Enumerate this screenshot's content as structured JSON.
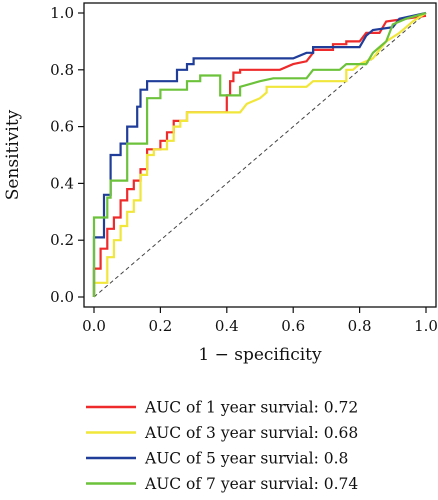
{
  "chart_data": {
    "type": "line",
    "title": "",
    "xlabel": "1 − specificity",
    "ylabel": "Sensitivity",
    "xlim": [
      0,
      1
    ],
    "ylim": [
      0,
      1
    ],
    "x_ticks": [
      "0.0",
      "0.2",
      "0.4",
      "0.6",
      "0.8",
      "1.0"
    ],
    "y_ticks": [
      "0.0",
      "0.2",
      "0.4",
      "0.6",
      "0.8",
      "1.0"
    ],
    "grid": false,
    "legend_position": "bottom",
    "reference_line": {
      "style": "dashed",
      "color": "#444444",
      "points": [
        [
          0,
          0
        ],
        [
          1,
          1
        ]
      ]
    },
    "series": [
      {
        "name": "AUC of 1 year survial: 0.72",
        "color": "#ee2a2a",
        "points": [
          [
            0,
            0
          ],
          [
            0,
            0.1
          ],
          [
            0.02,
            0.1
          ],
          [
            0.02,
            0.17
          ],
          [
            0.04,
            0.17
          ],
          [
            0.04,
            0.24
          ],
          [
            0.06,
            0.24
          ],
          [
            0.06,
            0.28
          ],
          [
            0.08,
            0.28
          ],
          [
            0.08,
            0.34
          ],
          [
            0.1,
            0.34
          ],
          [
            0.1,
            0.38
          ],
          [
            0.12,
            0.38
          ],
          [
            0.12,
            0.41
          ],
          [
            0.14,
            0.41
          ],
          [
            0.14,
            0.45
          ],
          [
            0.16,
            0.45
          ],
          [
            0.16,
            0.52
          ],
          [
            0.2,
            0.52
          ],
          [
            0.2,
            0.55
          ],
          [
            0.22,
            0.55
          ],
          [
            0.22,
            0.58
          ],
          [
            0.24,
            0.58
          ],
          [
            0.24,
            0.62
          ],
          [
            0.28,
            0.62
          ],
          [
            0.28,
            0.65
          ],
          [
            0.4,
            0.65
          ],
          [
            0.4,
            0.71
          ],
          [
            0.41,
            0.71
          ],
          [
            0.41,
            0.76
          ],
          [
            0.42,
            0.76
          ],
          [
            0.42,
            0.79
          ],
          [
            0.44,
            0.79
          ],
          [
            0.44,
            0.8
          ],
          [
            0.56,
            0.8
          ],
          [
            0.6,
            0.82
          ],
          [
            0.64,
            0.83
          ],
          [
            0.66,
            0.86
          ],
          [
            0.66,
            0.87
          ],
          [
            0.72,
            0.87
          ],
          [
            0.72,
            0.89
          ],
          [
            0.76,
            0.89
          ],
          [
            0.76,
            0.9
          ],
          [
            0.8,
            0.9
          ],
          [
            0.82,
            0.93
          ],
          [
            0.86,
            0.93
          ],
          [
            0.88,
            0.97
          ],
          [
            1,
            0.99
          ]
        ]
      },
      {
        "name": "AUC of 3 year survial: 0.68",
        "color": "#f1e63a",
        "points": [
          [
            0,
            0
          ],
          [
            0,
            0.05
          ],
          [
            0.04,
            0.05
          ],
          [
            0.04,
            0.14
          ],
          [
            0.06,
            0.14
          ],
          [
            0.06,
            0.2
          ],
          [
            0.08,
            0.2
          ],
          [
            0.08,
            0.25
          ],
          [
            0.1,
            0.25
          ],
          [
            0.1,
            0.3
          ],
          [
            0.12,
            0.3
          ],
          [
            0.12,
            0.34
          ],
          [
            0.14,
            0.34
          ],
          [
            0.14,
            0.43
          ],
          [
            0.16,
            0.43
          ],
          [
            0.16,
            0.5
          ],
          [
            0.18,
            0.5
          ],
          [
            0.18,
            0.52
          ],
          [
            0.22,
            0.52
          ],
          [
            0.22,
            0.55
          ],
          [
            0.24,
            0.55
          ],
          [
            0.24,
            0.6
          ],
          [
            0.26,
            0.6
          ],
          [
            0.26,
            0.62
          ],
          [
            0.28,
            0.62
          ],
          [
            0.28,
            0.65
          ],
          [
            0.44,
            0.65
          ],
          [
            0.46,
            0.68
          ],
          [
            0.5,
            0.7
          ],
          [
            0.52,
            0.72
          ],
          [
            0.52,
            0.74
          ],
          [
            0.64,
            0.74
          ],
          [
            0.66,
            0.76
          ],
          [
            0.76,
            0.76
          ],
          [
            0.76,
            0.8
          ],
          [
            0.78,
            0.8
          ],
          [
            0.8,
            0.82
          ],
          [
            0.84,
            0.84
          ],
          [
            0.86,
            0.87
          ],
          [
            0.88,
            0.9
          ],
          [
            0.92,
            0.93
          ],
          [
            0.94,
            0.95
          ],
          [
            0.96,
            0.97
          ],
          [
            1,
            1
          ]
        ]
      },
      {
        "name": "AUC of 5 year survial: 0.8",
        "color": "#1f3d99",
        "points": [
          [
            0,
            0
          ],
          [
            0,
            0.21
          ],
          [
            0.03,
            0.21
          ],
          [
            0.03,
            0.36
          ],
          [
            0.05,
            0.36
          ],
          [
            0.05,
            0.5
          ],
          [
            0.08,
            0.5
          ],
          [
            0.08,
            0.54
          ],
          [
            0.1,
            0.54
          ],
          [
            0.1,
            0.6
          ],
          [
            0.13,
            0.6
          ],
          [
            0.13,
            0.67
          ],
          [
            0.14,
            0.67
          ],
          [
            0.14,
            0.73
          ],
          [
            0.16,
            0.73
          ],
          [
            0.16,
            0.76
          ],
          [
            0.25,
            0.76
          ],
          [
            0.25,
            0.8
          ],
          [
            0.28,
            0.8
          ],
          [
            0.28,
            0.82
          ],
          [
            0.3,
            0.82
          ],
          [
            0.3,
            0.84
          ],
          [
            0.6,
            0.84
          ],
          [
            0.64,
            0.86
          ],
          [
            0.66,
            0.86
          ],
          [
            0.66,
            0.88
          ],
          [
            0.8,
            0.88
          ],
          [
            0.82,
            0.92
          ],
          [
            0.84,
            0.94
          ],
          [
            0.9,
            0.95
          ],
          [
            0.92,
            0.98
          ],
          [
            1,
            1
          ]
        ]
      },
      {
        "name": "AUC of 7 year survial: 0.74",
        "color": "#6cc23a",
        "points": [
          [
            0,
            0
          ],
          [
            0,
            0.28
          ],
          [
            0.04,
            0.28
          ],
          [
            0.04,
            0.35
          ],
          [
            0.05,
            0.35
          ],
          [
            0.05,
            0.41
          ],
          [
            0.1,
            0.41
          ],
          [
            0.1,
            0.54
          ],
          [
            0.16,
            0.54
          ],
          [
            0.16,
            0.7
          ],
          [
            0.2,
            0.7
          ],
          [
            0.2,
            0.73
          ],
          [
            0.28,
            0.73
          ],
          [
            0.28,
            0.76
          ],
          [
            0.32,
            0.76
          ],
          [
            0.32,
            0.78
          ],
          [
            0.38,
            0.78
          ],
          [
            0.38,
            0.71
          ],
          [
            0.44,
            0.71
          ],
          [
            0.44,
            0.74
          ],
          [
            0.5,
            0.76
          ],
          [
            0.54,
            0.77
          ],
          [
            0.64,
            0.77
          ],
          [
            0.66,
            0.8
          ],
          [
            0.74,
            0.8
          ],
          [
            0.76,
            0.82
          ],
          [
            0.82,
            0.82
          ],
          [
            0.84,
            0.86
          ],
          [
            0.88,
            0.9
          ],
          [
            0.9,
            0.96
          ],
          [
            0.94,
            0.98
          ],
          [
            1,
            1
          ]
        ]
      }
    ]
  }
}
